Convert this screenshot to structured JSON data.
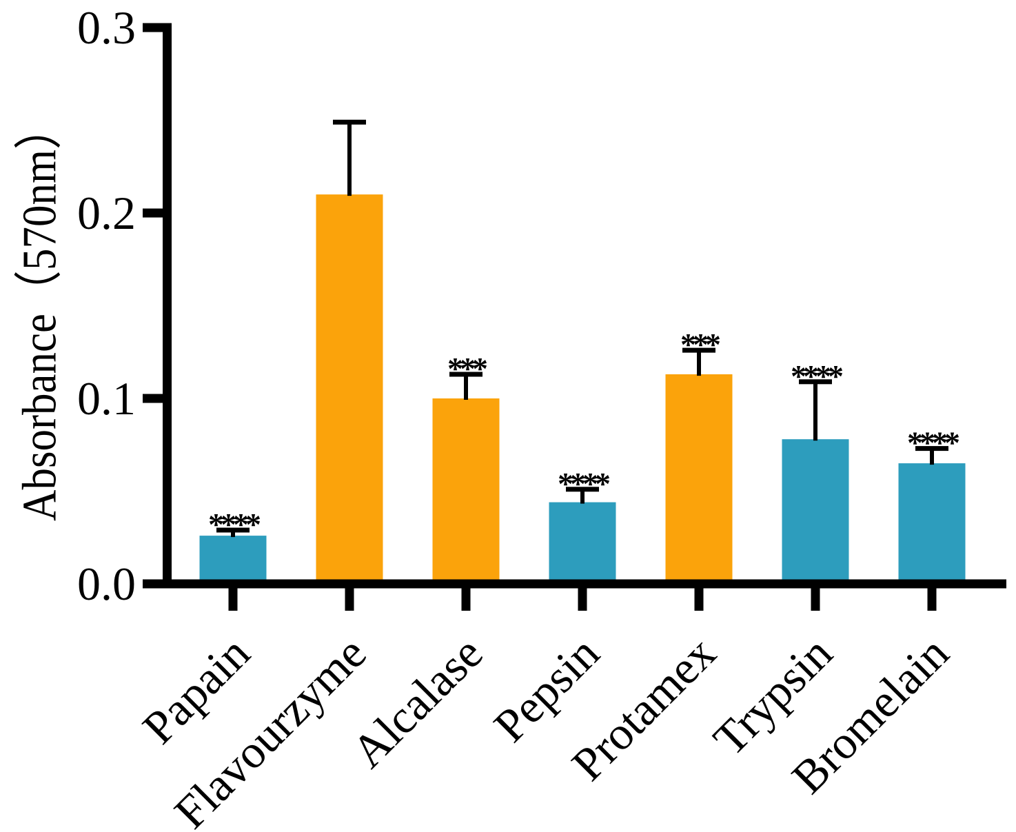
{
  "chart_data": {
    "type": "bar",
    "title": "",
    "xlabel": "",
    "ylabel": "Absorbance（570nm）",
    "ylim": [
      0,
      0.3
    ],
    "yticks": [
      0,
      0.1,
      0.2,
      0.3
    ],
    "ytick_labels": [
      "0.0",
      "0.1",
      "0.2",
      "0.3"
    ],
    "grid": false,
    "legend": "none",
    "categories": [
      "Papain",
      "Flavourzyme",
      "Alcalase",
      "Pepsin",
      "Protamex",
      "Trypsin",
      "Bromelain"
    ],
    "series": [
      {
        "name": "Absorbance",
        "values": [
          0.026,
          0.21,
          0.1,
          0.044,
          0.113,
          0.078,
          0.065
        ],
        "errors_plus": [
          0.003,
          0.039,
          0.013,
          0.007,
          0.013,
          0.031,
          0.008
        ],
        "significance": [
          "****",
          "",
          "***",
          "****",
          "***",
          "****",
          "****"
        ],
        "bar_colors": [
          "#2D9DBD",
          "#FBA30B",
          "#FBA30B",
          "#2D9DBD",
          "#FBA30B",
          "#2D9DBD",
          "#2D9DBD"
        ]
      }
    ],
    "colors": {
      "teal": "#2D9DBD",
      "orange": "#FBA30B",
      "axis": "#000000",
      "error_bar": "#000000",
      "significance_text": "#000000"
    }
  }
}
